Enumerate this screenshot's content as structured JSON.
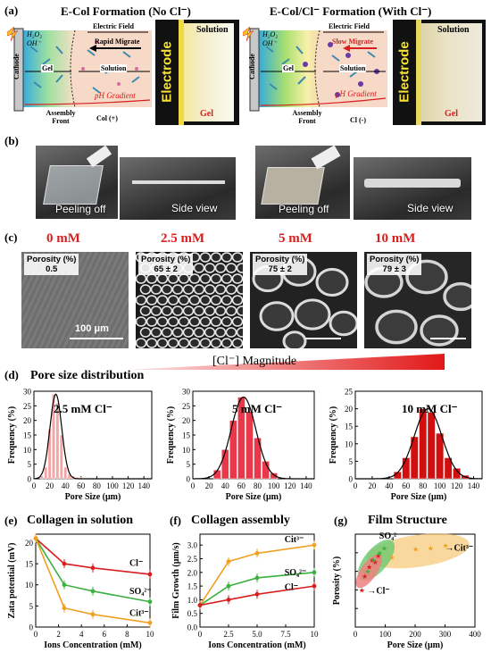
{
  "panels": {
    "a": {
      "label": "(a)",
      "left_title": "E-Col Formation  (No Cl⁻)",
      "right_title": "E-Col/Cl⁻ Formation  (With Cl⁻)",
      "cathode": "Cathode",
      "h2o2": "H₂O₂",
      "ohm": "OH⁻",
      "electric_field": "Electric Field",
      "rapid_migrate": "Rapid Migrate",
      "slow_migrate": "Slow Migrate",
      "gel": "Gel",
      "solution": "Solution",
      "ph_gradient": "pH Gradient",
      "assembly_front": "Assembly Front",
      "col_plus": "Col (+)",
      "cl_minus": "Cl (-)",
      "electrode": "Electrode",
      "photo_solution": "Solution",
      "photo_gel": "Gel"
    },
    "b": {
      "label": "(b)",
      "peeling_off": "Peeling off",
      "side_view": "Side view"
    },
    "c": {
      "label": "(c)",
      "concentrations": [
        "0 mM",
        "2.5 mM",
        "5 mM",
        "10 mM"
      ],
      "porosity_title": "Porosity (%)",
      "porosities": [
        "0.5",
        "65 ± 2",
        "75 ± 2",
        "79 ± 3"
      ],
      "scalebar": "100 μm",
      "magnitude": "[Cl⁻] Magnitude"
    },
    "d": {
      "label": "(d)",
      "title": "Pore size distribution"
    },
    "e": {
      "label": "(e)",
      "title": "Collagen in solution"
    },
    "f": {
      "label": "(f)",
      "title": "Collagen assembly"
    },
    "g": {
      "label": "(g)",
      "title": "Film Structure"
    }
  },
  "colors": {
    "accent_red": "#d81e1e",
    "orange": "#f0a020",
    "green": "#3cb040",
    "pink": "#f4a6a6"
  },
  "chart_data": [
    {
      "id": "d1",
      "type": "bar",
      "legend": "2.5 mM Cl⁻",
      "xlabel": "Pore Size (μm)",
      "ylabel": "Frequency (%)",
      "xlim": [
        0,
        150
      ],
      "ylim": [
        0,
        30
      ],
      "xticks": [
        0,
        20,
        40,
        60,
        80,
        100,
        120,
        140
      ],
      "yticks": [
        0,
        5,
        10,
        15,
        20,
        25,
        30
      ],
      "bins": [
        10,
        15,
        20,
        25,
        30,
        35,
        40,
        45,
        50,
        55,
        60
      ],
      "values": [
        1,
        4,
        17,
        29,
        26,
        15,
        4,
        1.5,
        1,
        0.5,
        0.5
      ],
      "color": "#f4a6a6"
    },
    {
      "id": "d2",
      "type": "bar",
      "legend": "5 mM Cl⁻",
      "xlabel": "Pore Size (μm)",
      "ylabel": "Frequency (%)",
      "xlim": [
        0,
        150
      ],
      "ylim": [
        0,
        30
      ],
      "xticks": [
        0,
        20,
        40,
        60,
        80,
        100,
        120,
        140
      ],
      "yticks": [
        0,
        5,
        10,
        15,
        20,
        25,
        30
      ],
      "bins": [
        30,
        40,
        50,
        60,
        70,
        80,
        90,
        100
      ],
      "values": [
        3,
        10,
        20,
        28,
        23,
        14,
        6,
        2
      ],
      "color": "#e8384a"
    },
    {
      "id": "d3",
      "type": "bar",
      "legend": "10 mM Cl⁻",
      "xlabel": "Pore Size (μm)",
      "ylabel": "Frequency (%)",
      "xlim": [
        0,
        150
      ],
      "ylim": [
        0,
        25
      ],
      "xticks": [
        0,
        20,
        40,
        60,
        80,
        100,
        120,
        140
      ],
      "yticks": [
        0,
        5,
        10,
        15,
        20,
        25
      ],
      "bins": [
        50,
        60,
        70,
        80,
        90,
        100,
        110,
        120,
        130
      ],
      "values": [
        2,
        6,
        12,
        20,
        19,
        13,
        6,
        3,
        1
      ],
      "color": "#d01010"
    },
    {
      "id": "e",
      "type": "line",
      "xlabel": "Ions Concentration (mM)",
      "ylabel": "Zata potential (mV)",
      "xlim": [
        0,
        10
      ],
      "ylim": [
        0,
        22
      ],
      "xticks": [
        0,
        2,
        4,
        6,
        8,
        10
      ],
      "yticks": [
        0,
        5,
        10,
        15,
        20
      ],
      "x": [
        0,
        2.5,
        5,
        10
      ],
      "series": [
        {
          "name": "Cl⁻",
          "values": [
            21,
            15,
            14,
            12.5
          ],
          "color": "#d81e1e"
        },
        {
          "name": "SO₄²⁻",
          "values": [
            21,
            10,
            8.5,
            6
          ],
          "color": "#3cb040"
        },
        {
          "name": "Cit³⁻",
          "values": [
            21,
            4.5,
            3,
            1
          ],
          "color": "#f0a020"
        }
      ]
    },
    {
      "id": "f",
      "type": "line",
      "xlabel": "Ions Concentration (mM)",
      "ylabel": "Film Growth (μm/s)",
      "xlim": [
        0,
        10
      ],
      "ylim": [
        0,
        3.4
      ],
      "xticks": [
        0,
        2.5,
        5.0,
        7.5,
        10
      ],
      "yticks": [
        0,
        0.5,
        1.0,
        1.5,
        2.0,
        2.5,
        3.0
      ],
      "x": [
        0,
        2.5,
        5,
        10
      ],
      "series": [
        {
          "name": "Cit³⁻",
          "values": [
            0.8,
            2.4,
            2.7,
            3.0
          ],
          "color": "#f0a020"
        },
        {
          "name": "SO₄²⁻",
          "values": [
            0.8,
            1.5,
            1.8,
            2.0
          ],
          "color": "#3cb040"
        },
        {
          "name": "Cl⁻",
          "values": [
            0.8,
            1.0,
            1.2,
            1.5
          ],
          "color": "#d81e1e"
        }
      ]
    },
    {
      "id": "g",
      "type": "scatter",
      "xlabel": "Pore Size (μm)",
      "ylabel": "Porosity (%)",
      "xlim": [
        0,
        400
      ],
      "ylim": [
        0,
        100
      ],
      "xticks": [
        0,
        100,
        200,
        300,
        400
      ],
      "yticks": [
        0,
        20,
        40,
        60,
        80,
        100
      ],
      "series": [
        {
          "name": "Cl⁻",
          "points": [
            [
              20,
              40
            ],
            [
              30,
              55
            ],
            [
              45,
              65
            ],
            [
              55,
              72
            ],
            [
              65,
              70
            ],
            [
              75,
              77
            ]
          ],
          "color": "#d81e1e"
        },
        {
          "name": "SO₄²⁻",
          "points": [
            [
              40,
              60
            ],
            [
              60,
              72
            ],
            [
              80,
              80
            ],
            [
              95,
              85
            ]
          ],
          "color": "#3cb040"
        },
        {
          "name": "Cit³⁻",
          "points": [
            [
              120,
              75
            ],
            [
              200,
              84
            ],
            [
              250,
              85
            ],
            [
              300,
              88
            ]
          ],
          "color": "#f0a020"
        }
      ]
    }
  ]
}
